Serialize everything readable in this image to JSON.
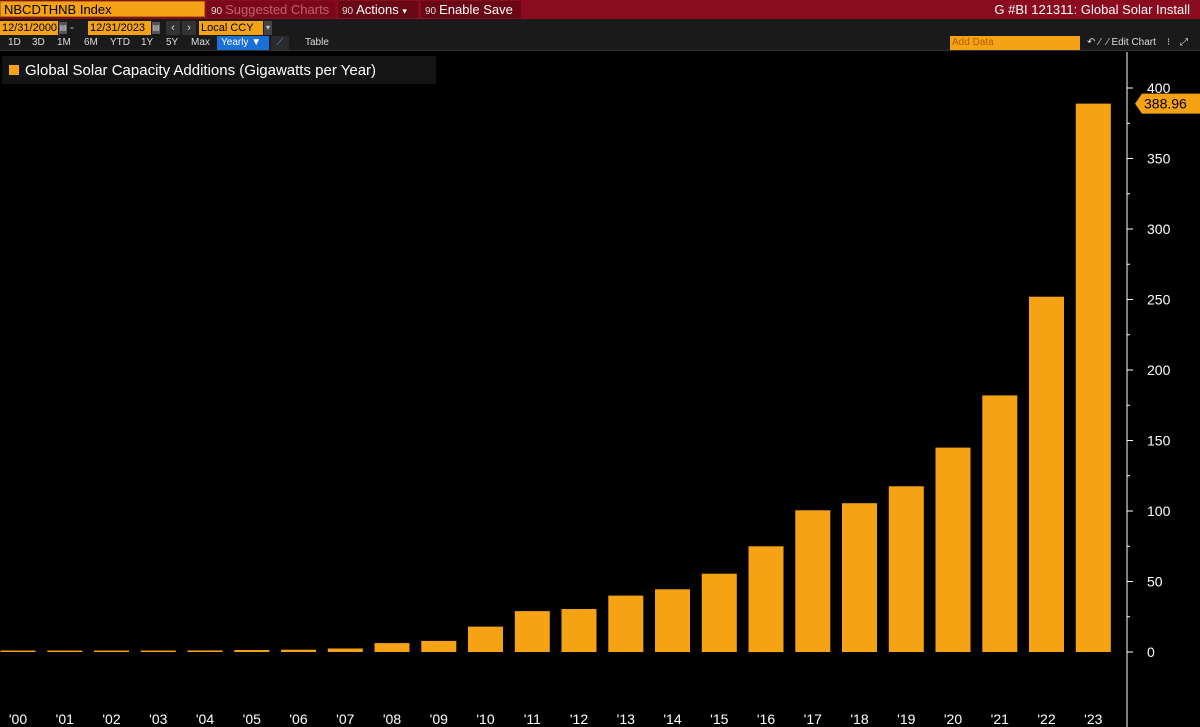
{
  "toolbar": {
    "ticker": "NBCDTHNB Index",
    "suggested_charts": "Suggested Charts",
    "actions": "Actions",
    "enable_save": "Enable Save",
    "title": "G #BI 121311: Global Solar Install"
  },
  "dates": {
    "start": "12/31/2000",
    "end": "12/31/2023",
    "currency": "Local CCY"
  },
  "periods": [
    "1D",
    "3D",
    "1M",
    "6M",
    "YTD",
    "1Y",
    "5Y",
    "Max"
  ],
  "frequency": "Yearly",
  "table_label": "Table",
  "add_data_placeholder": "Add Data",
  "edit_chart": "Edit Chart",
  "colors": {
    "bar": "#f5a214",
    "top_bar": "#8a0a1e",
    "background": "#000000"
  },
  "chart_data": {
    "type": "bar",
    "legend": "Global Solar Capacity Additions (Gigawatts per Year)",
    "categories": [
      "'00",
      "'01",
      "'02",
      "'03",
      "'04",
      "'05",
      "'06",
      "'07",
      "'08",
      "'09",
      "'10",
      "'11",
      "'12",
      "'13",
      "'14",
      "'15",
      "'16",
      "'17",
      "'18",
      "'19",
      "'20",
      "'21",
      "'22",
      "'23"
    ],
    "values": [
      0.3,
      0.3,
      0.5,
      0.6,
      1.1,
      1.4,
      1.6,
      2.5,
      6.3,
      7.9,
      18,
      29,
      30.5,
      40,
      44.5,
      55.5,
      75,
      100.5,
      105.5,
      117.5,
      145,
      182,
      252,
      388.96
    ],
    "ylim": [
      -30,
      405
    ],
    "yticks": [
      0,
      50,
      100,
      150,
      200,
      250,
      300,
      350,
      400
    ],
    "last_value_label": "388.96",
    "grid": false,
    "legend_position": "top-left"
  }
}
